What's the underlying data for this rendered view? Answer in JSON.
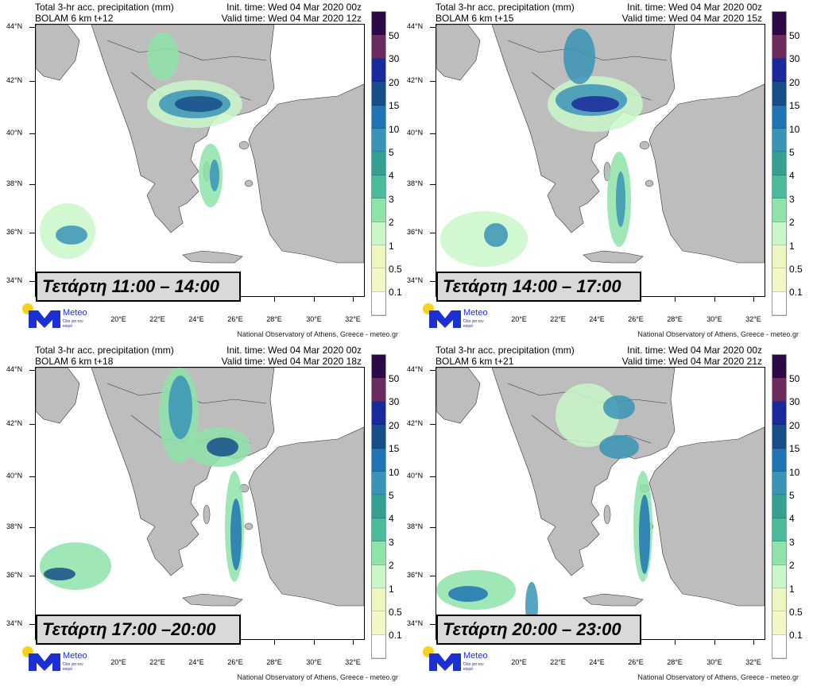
{
  "shared": {
    "title": "Total 3-hr acc. precipitation (mm)",
    "lat_labels": [
      "44°N",
      "42°N",
      "40°N",
      "38°N",
      "36°N",
      "34°N"
    ],
    "lon_labels": [
      "20°E",
      "22°E",
      "24°E",
      "26°E",
      "28°E",
      "30°E",
      "32°E"
    ],
    "colorbar_labels": [
      "50",
      "30",
      "20",
      "15",
      "10",
      "5",
      "4",
      "3",
      "2",
      "1",
      "0.5",
      "0.1"
    ],
    "colorbar_colors": [
      "#2c0a48",
      "#6b2c5e",
      "#1a2a9a",
      "#164f88",
      "#1f74b3",
      "#3994b6",
      "#35a08f",
      "#4db99b",
      "#8fe3aa",
      "#c9f7c8",
      "#eef6bf",
      "#f3f7c8",
      "#ffffff"
    ],
    "credit": "National Observatory of Athens, Greece - meteo.gr",
    "logo_name": "Meteo",
    "logo_slogan": "Όλα για τον καιρό"
  },
  "panels": [
    {
      "model": "BOLAM 6 km t+12",
      "init": "Init. time: Wed 04 Mar 2020 00z",
      "valid": "Valid time: Wed 04 Mar 2020 12z",
      "overlay": "Τετάρτη 11:00 – 14:00"
    },
    {
      "model": "BOLAM 6 km t+15",
      "init": "Init. time: Wed 04 Mar 2020 00z",
      "valid": "Valid time: Wed 04 Mar 2020 15z",
      "overlay": "Τετάρτη 14:00 – 17:00"
    },
    {
      "model": "BOLAM 6 km t+18",
      "init": "Init. time: Wed 04 Mar 2020 00z",
      "valid": "Valid time: Wed 04 Mar 2020 18z",
      "overlay": "Τετάρτη 17:00 –20:00"
    },
    {
      "model": "BOLAM 6 km t+21",
      "init": "Init. time: Wed 04 Mar 2020 00z",
      "valid": "Valid time: Wed 04 Mar 2020 21z",
      "overlay": "Τετάρτη 20:00 – 23:00"
    }
  ]
}
